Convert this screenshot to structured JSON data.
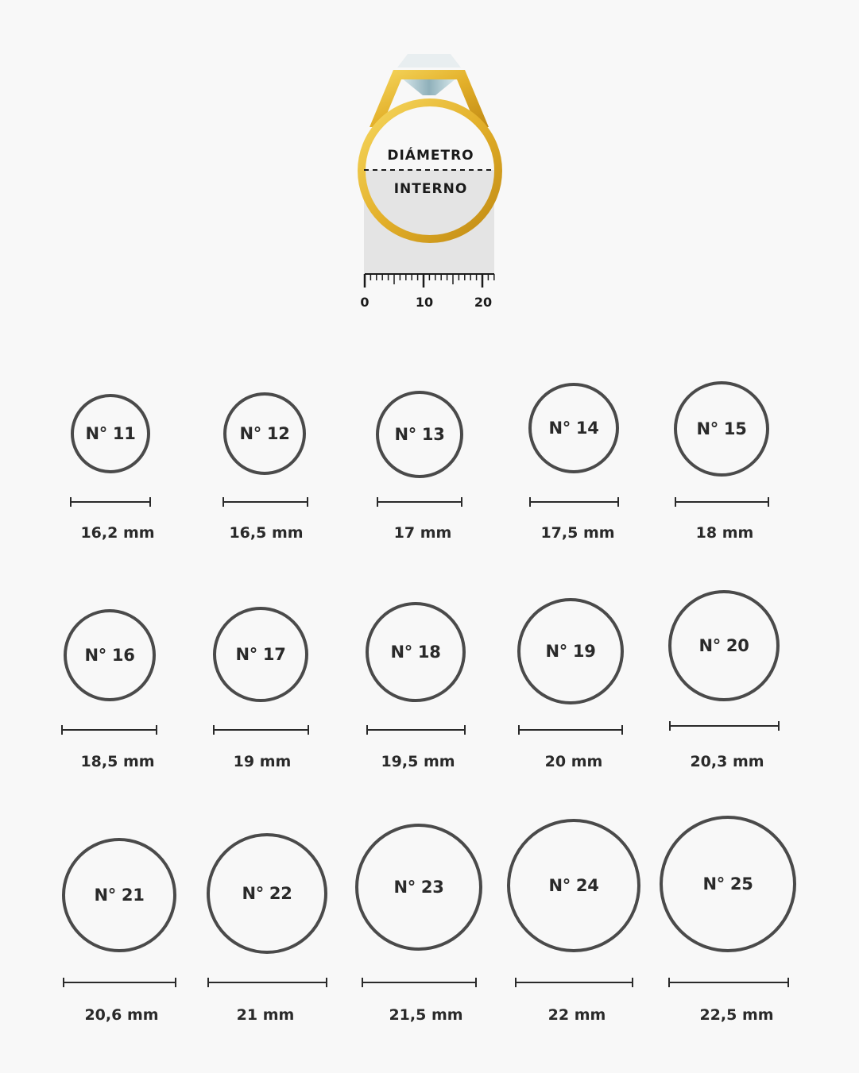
{
  "illustration": {
    "label_top": "DIÁMETRO",
    "label_bottom": "INTERNO",
    "ruler_ticks": [
      "0",
      "10",
      "20"
    ],
    "colors": {
      "gold": "#e8b830",
      "gold_dark": "#c8961a",
      "diamond": "#b8d4dc",
      "shade": "#e4e4e4"
    }
  },
  "sizes": [
    {
      "label": "N° 11",
      "mm": "16,2 mm"
    },
    {
      "label": "N° 12",
      "mm": "16,5 mm"
    },
    {
      "label": "N° 13",
      "mm": "17 mm"
    },
    {
      "label": "N° 14",
      "mm": "17,5 mm"
    },
    {
      "label": "N° 15",
      "mm": "18 mm"
    },
    {
      "label": "N° 16",
      "mm": "18,5 mm"
    },
    {
      "label": "N° 17",
      "mm": "19 mm"
    },
    {
      "label": "N° 18",
      "mm": "19,5 mm"
    },
    {
      "label": "N° 19",
      "mm": "20 mm"
    },
    {
      "label": "N° 20",
      "mm": "20,3 mm"
    },
    {
      "label": "N° 21",
      "mm": "20,6 mm"
    },
    {
      "label": "N° 22",
      "mm": "21 mm"
    },
    {
      "label": "N° 23",
      "mm": "21,5 mm"
    },
    {
      "label": "N° 24",
      "mm": "22 mm"
    },
    {
      "label": "N° 25",
      "mm": "22,5 mm"
    }
  ],
  "colors": {
    "background": "#f8f8f8",
    "ring_stroke": "#4a4a4a",
    "text": "#2a2a2a"
  }
}
